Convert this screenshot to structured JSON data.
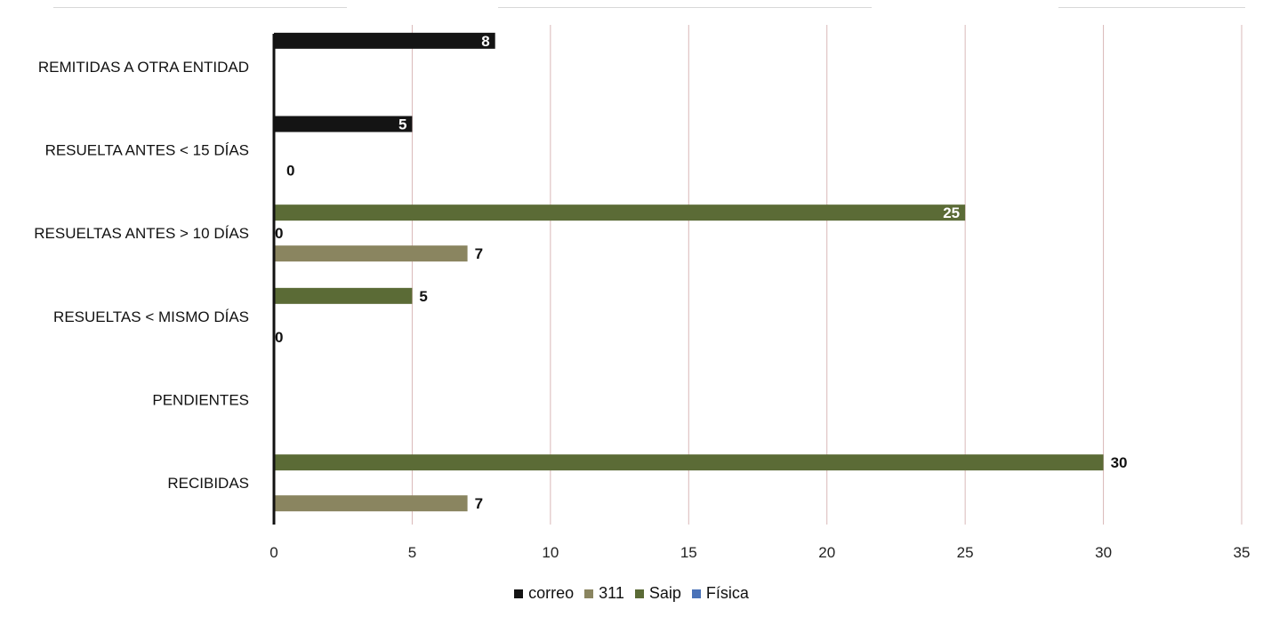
{
  "chart_data": {
    "type": "bar",
    "orientation": "horizontal",
    "categories": [
      "REMITIDAS A OTRA ENTIDAD",
      "RESUELTA ANTES < 15 DÍAS",
      "RESUELTAS ANTES > 10 DÍAS",
      "RESUELTAS < MISMO DÍAS",
      "PENDIENTES",
      "RECIBIDAS"
    ],
    "series": [
      {
        "name": "correo",
        "color": "#141414",
        "values": [
          8,
          5,
          null,
          null,
          null,
          null
        ]
      },
      {
        "name": "311",
        "color": "#8a8560",
        "values": [
          null,
          0,
          7,
          0,
          null,
          7
        ]
      },
      {
        "name": "Saip",
        "color": "#5b6b36",
        "values": [
          null,
          null,
          25,
          5,
          null,
          30
        ]
      },
      {
        "name": "Física",
        "color": "#4a72b8",
        "values": [
          null,
          null,
          0,
          null,
          null,
          null
        ]
      }
    ],
    "data_labels": [
      {
        "category": 0,
        "series": 0,
        "text": "8"
      },
      {
        "category": 1,
        "series": 0,
        "text": "5"
      },
      {
        "category": 1,
        "series": 1,
        "text": "0"
      },
      {
        "category": 2,
        "series": 2,
        "text": "25"
      },
      {
        "category": 2,
        "series": 3,
        "text": "0"
      },
      {
        "category": 2,
        "series": 1,
        "text": "7"
      },
      {
        "category": 3,
        "series": 2,
        "text": "5"
      },
      {
        "category": 3,
        "series": 1,
        "text": "0"
      },
      {
        "category": 5,
        "series": 2,
        "text": "30"
      },
      {
        "category": 5,
        "series": 1,
        "text": "7"
      }
    ],
    "xlim": [
      0,
      35
    ],
    "xticks": [
      "0",
      "5",
      "10",
      "15",
      "20",
      "25",
      "30",
      "35"
    ],
    "grid": true,
    "legend_position": "bottom"
  }
}
